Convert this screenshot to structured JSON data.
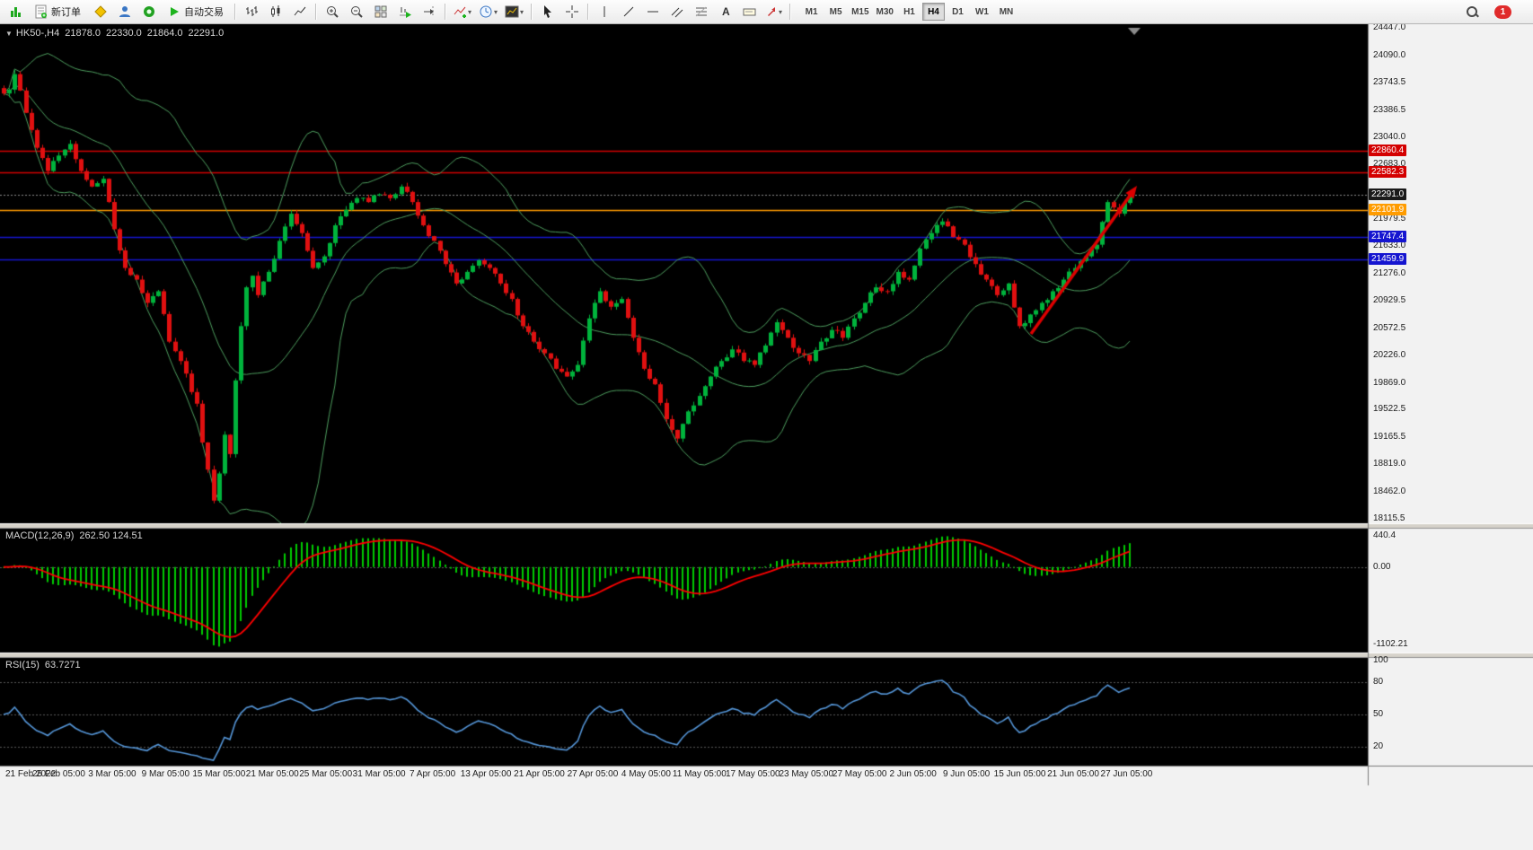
{
  "toolbar": {
    "new_order_label": "新订单",
    "autotrading_label": "自动交易",
    "timeframes": [
      "M1",
      "M5",
      "M15",
      "M30",
      "H1",
      "H4",
      "D1",
      "W1",
      "MN"
    ],
    "active_timeframe": "H4",
    "notification_count": "1"
  },
  "chart": {
    "header": {
      "symbol_period": "HK50-,H4",
      "open": "21878.0",
      "high": "22330.0",
      "low": "21864.0",
      "close": "22291.0"
    },
    "price_axis": {
      "ticks": [
        {
          "label": "24447.0",
          "value": 24447.0
        },
        {
          "label": "24090.0",
          "value": 24090.0
        },
        {
          "label": "23743.5",
          "value": 23743.5
        },
        {
          "label": "23386.5",
          "value": 23386.5
        },
        {
          "label": "23040.0",
          "value": 23040.0
        },
        {
          "label": "22683.0",
          "value": 22683.0
        },
        {
          "label": "21979.5",
          "value": 21979.5
        },
        {
          "label": "21633.0",
          "value": 21633.0
        },
        {
          "label": "21276.0",
          "value": 21276.0
        },
        {
          "label": "20929.5",
          "value": 20929.5
        },
        {
          "label": "20572.5",
          "value": 20572.5
        },
        {
          "label": "20226.0",
          "value": 20226.0
        },
        {
          "label": "19869.0",
          "value": 19869.0
        },
        {
          "label": "19522.5",
          "value": 19522.5
        },
        {
          "label": "19165.5",
          "value": 19165.5
        },
        {
          "label": "18819.0",
          "value": 18819.0
        },
        {
          "label": "18462.0",
          "value": 18462.0
        },
        {
          "label": "18115.5",
          "value": 18115.5
        }
      ]
    },
    "hlines": [
      {
        "label": "22860.4",
        "value": 22860.4,
        "color": "#d40000",
        "style": "solid",
        "box": "#d40000"
      },
      {
        "label": "22582.3",
        "value": 22582.3,
        "color": "#d40000",
        "style": "solid",
        "box": "#d40000"
      },
      {
        "label": "22291.0",
        "value": 22291.0,
        "color": "#8a8a8a",
        "style": "dashed",
        "box": "#1a1a1a"
      },
      {
        "label": "22101.9",
        "value": 22101.9,
        "color": "#ff9c00",
        "style": "solid",
        "box": "#ff9c00"
      },
      {
        "label": "21747.4",
        "value": 21747.4,
        "color": "#1515d0",
        "style": "solid",
        "box": "#1515d0"
      },
      {
        "label": "21459.9",
        "value": 21459.9,
        "color": "#1515d0",
        "style": "solid",
        "box": "#1515d0"
      }
    ],
    "time_axis": [
      "21 Feb 2022",
      "25 Feb 05:00",
      "3 Mar 05:00",
      "9 Mar 05:00",
      "15 Mar 05:00",
      "21 Mar 05:00",
      "25 Mar 05:00",
      "31 Mar 05:00",
      "7 Apr 05:00",
      "13 Apr 05:00",
      "21 Apr 05:00",
      "27 Apr 05:00",
      "4 May 05:00",
      "11 May 05:00",
      "17 May 05:00",
      "23 May 05:00",
      "27 May 05:00",
      "2 Jun 05:00",
      "9 Jun 05:00",
      "15 Jun 05:00",
      "21 Jun 05:00",
      "27 Jun 05:00"
    ]
  },
  "macd": {
    "label": "MACD(12,26,9)",
    "values": "262.50 124.51",
    "axis_top": "440.4",
    "axis_zero": "0.00",
    "axis_bottom": "-1102.21"
  },
  "rsi": {
    "label": "RSI(15)",
    "value": "63.7271",
    "levels": [
      {
        "label": "100",
        "value": 100
      },
      {
        "label": "80",
        "value": 80
      },
      {
        "label": "50",
        "value": 50
      },
      {
        "label": "20",
        "value": 20
      }
    ]
  },
  "colors": {
    "chart_bg": "#000000",
    "margin_bg": "#f2f2f2",
    "bull": "#00b33c",
    "bear": "#e01010",
    "bollinger": "#4e9e5f",
    "macd_histogram": "#00cc00",
    "macd_signal": "#ff0000",
    "rsi_line": "#5596d8",
    "arrow": "#dd0000",
    "axis_line": "#7a7a7a",
    "level_dash": "#5a5a5a"
  },
  "chart_data": {
    "type": "candlestick+indicators",
    "symbol": "HK50",
    "period": "H4",
    "candle_count": 205,
    "price_range": [
      18115.5,
      24447.0
    ],
    "macd_axis_range": [
      -1102.21,
      440.4
    ],
    "last_ohlc": [
      21878.0,
      22330.0,
      21864.0,
      22291.0
    ],
    "bollinger": {
      "period": 20,
      "deviation": 2
    },
    "macd_params": [
      12,
      26,
      9
    ],
    "rsi_period": 15,
    "hline_prices": [
      22860.4,
      22582.3,
      22291.0,
      22101.9,
      21747.4,
      21459.9
    ],
    "close_keypoints": [
      [
        0,
        23600
      ],
      [
        1,
        23650
      ],
      [
        2,
        23850
      ],
      [
        4,
        23350
      ],
      [
        6,
        22900
      ],
      [
        8,
        22600
      ],
      [
        10,
        22800
      ],
      [
        12,
        22950
      ],
      [
        14,
        22600
      ],
      [
        16,
        22400
      ],
      [
        18,
        22500
      ],
      [
        20,
        21850
      ],
      [
        22,
        21350
      ],
      [
        24,
        21200
      ],
      [
        26,
        20900
      ],
      [
        28,
        21050
      ],
      [
        30,
        20400
      ],
      [
        32,
        20150
      ],
      [
        34,
        19750
      ],
      [
        35,
        19600
      ],
      [
        36,
        19100
      ],
      [
        37,
        18750
      ],
      [
        38,
        18350
      ],
      [
        39,
        18700
      ],
      [
        40,
        19200
      ],
      [
        41,
        18950
      ],
      [
        42,
        19900
      ],
      [
        43,
        20600
      ],
      [
        44,
        21100
      ],
      [
        45,
        21250
      ],
      [
        46,
        21000
      ],
      [
        48,
        21300
      ],
      [
        50,
        21700
      ],
      [
        52,
        22050
      ],
      [
        54,
        21800
      ],
      [
        56,
        21350
      ],
      [
        58,
        21500
      ],
      [
        60,
        21900
      ],
      [
        62,
        22100
      ],
      [
        64,
        22250
      ],
      [
        66,
        22200
      ],
      [
        68,
        22300
      ],
      [
        70,
        22250
      ],
      [
        72,
        22400
      ],
      [
        74,
        22200
      ],
      [
        76,
        21900
      ],
      [
        78,
        21700
      ],
      [
        80,
        21400
      ],
      [
        82,
        21150
      ],
      [
        84,
        21300
      ],
      [
        86,
        21450
      ],
      [
        88,
        21350
      ],
      [
        90,
        21150
      ],
      [
        92,
        20950
      ],
      [
        94,
        20600
      ],
      [
        96,
        20400
      ],
      [
        98,
        20250
      ],
      [
        100,
        20050
      ],
      [
        102,
        19950
      ],
      [
        104,
        20100
      ],
      [
        106,
        20700
      ],
      [
        108,
        21050
      ],
      [
        110,
        20850
      ],
      [
        112,
        20950
      ],
      [
        114,
        20450
      ],
      [
        116,
        20050
      ],
      [
        118,
        19850
      ],
      [
        120,
        19400
      ],
      [
        122,
        19150
      ],
      [
        124,
        19500
      ],
      [
        126,
        19700
      ],
      [
        128,
        19950
      ],
      [
        130,
        20150
      ],
      [
        132,
        20300
      ],
      [
        134,
        20150
      ],
      [
        136,
        20100
      ],
      [
        138,
        20350
      ],
      [
        140,
        20650
      ],
      [
        142,
        20450
      ],
      [
        144,
        20250
      ],
      [
        146,
        20150
      ],
      [
        148,
        20400
      ],
      [
        150,
        20550
      ],
      [
        152,
        20450
      ],
      [
        154,
        20700
      ],
      [
        156,
        20900
      ],
      [
        158,
        21100
      ],
      [
        160,
        21050
      ],
      [
        162,
        21300
      ],
      [
        164,
        21200
      ],
      [
        166,
        21600
      ],
      [
        168,
        21800
      ],
      [
        170,
        21950
      ],
      [
        172,
        21750
      ],
      [
        174,
        21650
      ],
      [
        176,
        21400
      ],
      [
        178,
        21200
      ],
      [
        180,
        21000
      ],
      [
        182,
        21150
      ],
      [
        184,
        20600
      ],
      [
        186,
        20750
      ],
      [
        188,
        20900
      ],
      [
        190,
        21050
      ],
      [
        192,
        21200
      ],
      [
        194,
        21350
      ],
      [
        196,
        21500
      ],
      [
        198,
        21650
      ],
      [
        200,
        22200
      ],
      [
        202,
        22050
      ],
      [
        204,
        22291
      ]
    ],
    "arrow": {
      "from": [
        1148,
        372
      ],
      "to": [
        1266,
        207
      ]
    }
  }
}
